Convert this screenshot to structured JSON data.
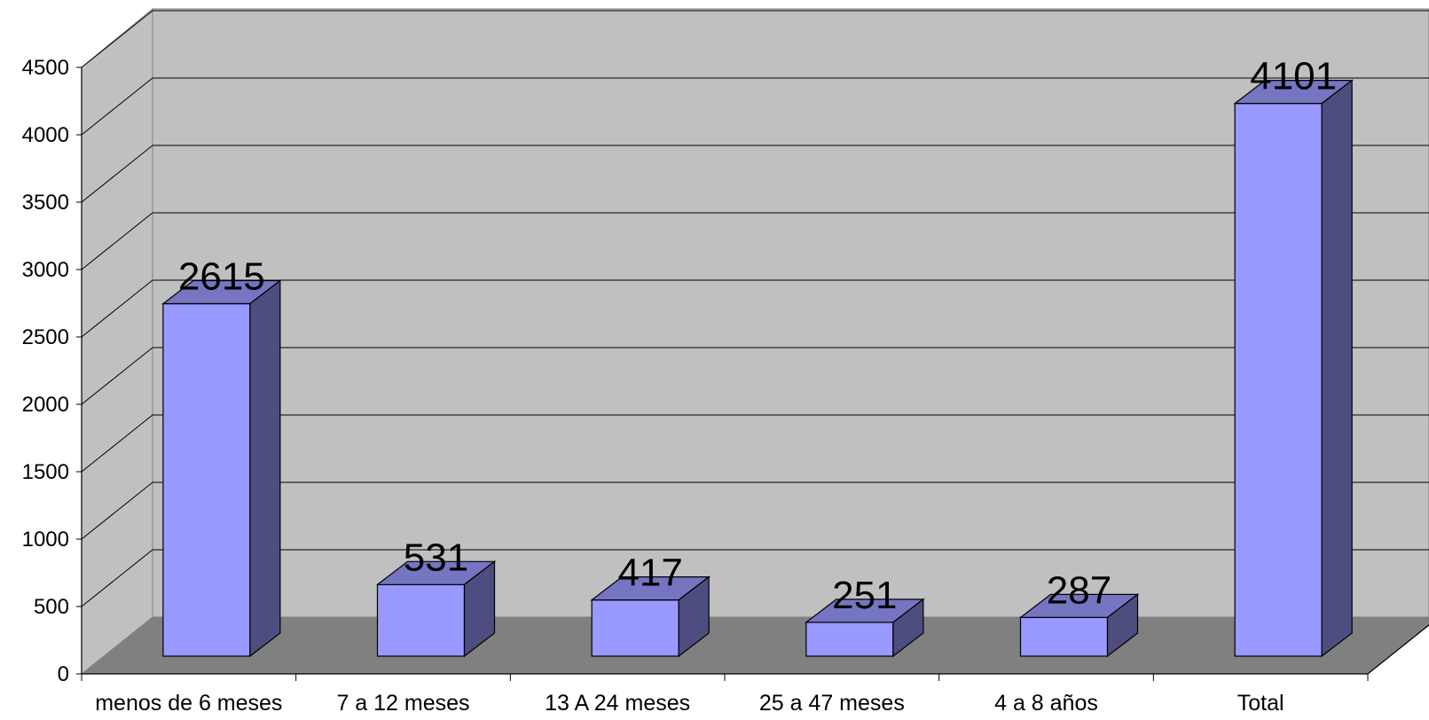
{
  "chart_data": {
    "type": "bar",
    "style": "3d-column",
    "categories": [
      "menos de 6 meses",
      "7 a 12 meses",
      "13 A 24 meses",
      "25 a 47 meses",
      "4 a 8 años",
      "Total"
    ],
    "values": [
      2615,
      531,
      417,
      251,
      287,
      4101
    ],
    "data_labels": [
      "2615",
      "531",
      "417",
      "251",
      "287",
      "4101"
    ],
    "y_ticks": [
      "0",
      "500",
      "1000",
      "1500",
      "2000",
      "2500",
      "3000",
      "3500",
      "4000",
      "4500"
    ],
    "ylim": [
      0,
      4500
    ],
    "grid": true,
    "legend": "none",
    "title": "",
    "xlabel": "",
    "ylabel": ""
  },
  "colors": {
    "bar_front": "#9999ff",
    "bar_top": "#7575c2",
    "bar_side": "#4d4d80",
    "back_wall": "#c0c0c0",
    "side_wall": "#c0c0c0",
    "floor": "#808080",
    "gridline": "#000000"
  }
}
